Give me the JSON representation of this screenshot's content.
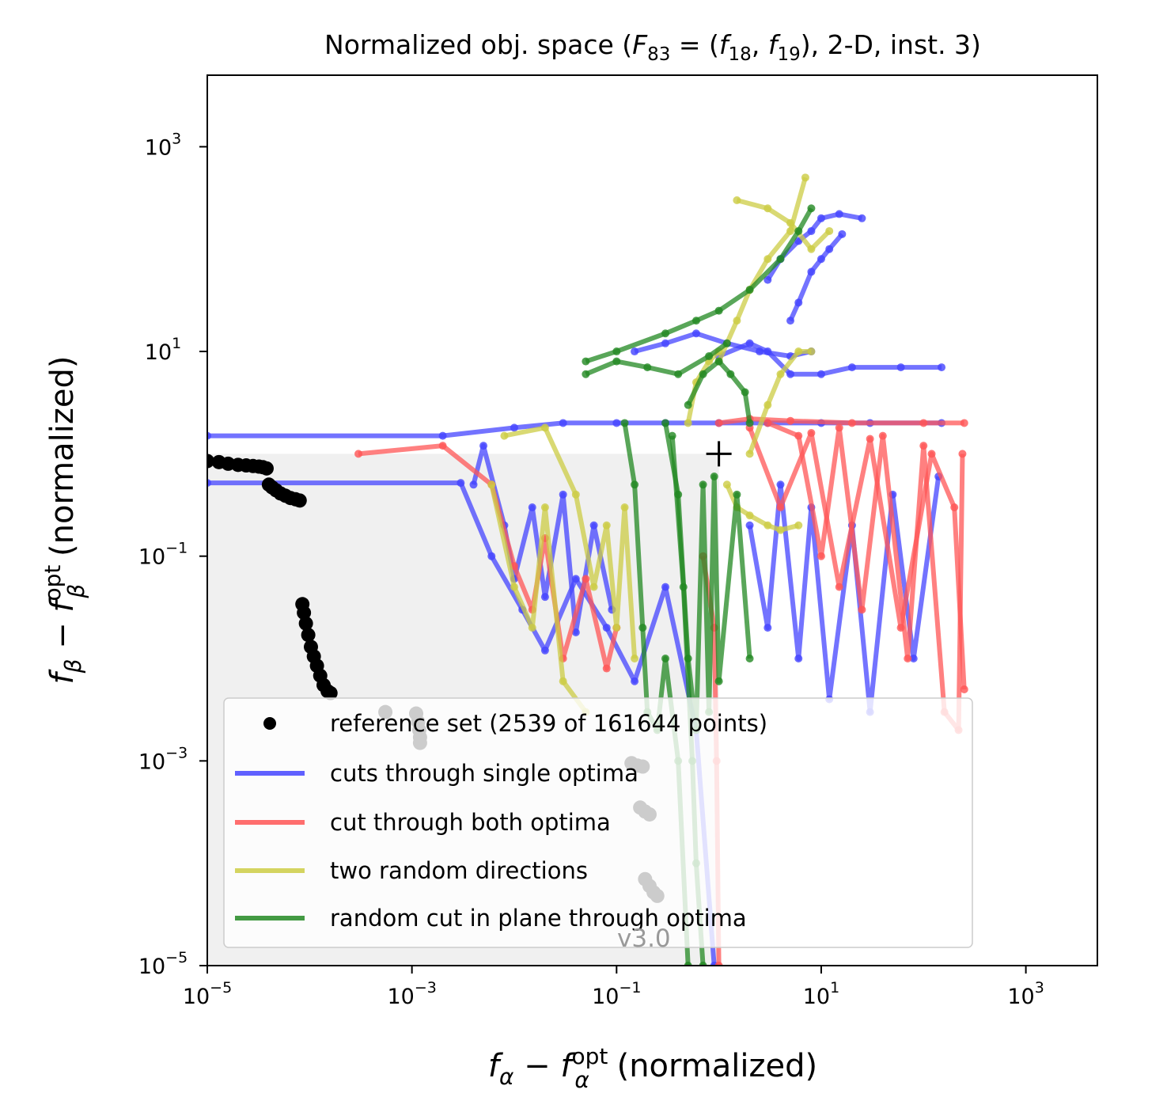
{
  "chart_data": {
    "type": "line",
    "title_parts": {
      "prefix": "Normalized obj. space (",
      "f_main": "F",
      "f_main_sub": "83",
      "eq": " = (",
      "f1": "f",
      "f1_sub": "18",
      "comma": ", ",
      "f2": "f",
      "f2_sub": "19",
      "suffix": "), 2-D, inst. 3)"
    },
    "xlabel_parts": {
      "f": "f",
      "sub": "α",
      "minus": " − ",
      "f2": "f",
      "sup": "opt",
      "sub2": "α",
      "rest": " (normalized)"
    },
    "ylabel_parts": {
      "f": "f",
      "sub": "β",
      "minus": " − ",
      "f2": "f",
      "sup": "opt",
      "sub2": "β",
      "rest": " (normalized)"
    },
    "xscale": "log",
    "yscale": "log",
    "xlim": [
      1e-05,
      5000
    ],
    "ylim": [
      1e-05,
      5000
    ],
    "x_ticks": [
      {
        "value": 1e-05,
        "base": "10",
        "exp": "−5"
      },
      {
        "value": 0.001,
        "base": "10",
        "exp": "−3"
      },
      {
        "value": 0.1,
        "base": "10",
        "exp": "−1"
      },
      {
        "value": 10,
        "base": "10",
        "exp": "1"
      },
      {
        "value": 1000,
        "base": "10",
        "exp": "3"
      }
    ],
    "y_ticks": [
      {
        "value": 1e-05,
        "base": "10",
        "exp": "−5"
      },
      {
        "value": 0.001,
        "base": "10",
        "exp": "−3"
      },
      {
        "value": 0.1,
        "base": "10",
        "exp": "−1"
      },
      {
        "value": 10,
        "base": "10",
        "exp": "1"
      },
      {
        "value": 1000,
        "base": "10",
        "exp": "3"
      }
    ],
    "grid": false,
    "legend_position": "lower-center",
    "watermark": "v3.0",
    "reference_point": [
      1,
      1
    ],
    "dominated_region": {
      "x": [
        1e-05,
        1
      ],
      "y": [
        1e-05,
        1
      ],
      "color": "#f0f0f0"
    },
    "series": [
      {
        "name": "reference set (2539 of 161644 points)",
        "kind": "points",
        "color": "#000000",
        "points": [
          [
            1e-05,
            0.85
          ],
          [
            1.3e-05,
            0.83
          ],
          [
            1.6e-05,
            0.8
          ],
          [
            2e-05,
            0.78
          ],
          [
            2.4e-05,
            0.77
          ],
          [
            2.8e-05,
            0.76
          ],
          [
            3.2e-05,
            0.75
          ],
          [
            3.5e-05,
            0.74
          ],
          [
            3.8e-05,
            0.72
          ],
          [
            4e-05,
            0.5
          ],
          [
            4.3e-05,
            0.47
          ],
          [
            4.7e-05,
            0.44
          ],
          [
            5.2e-05,
            0.41
          ],
          [
            5.8e-05,
            0.39
          ],
          [
            6.5e-05,
            0.37
          ],
          [
            7.3e-05,
            0.36
          ],
          [
            8e-05,
            0.35
          ],
          [
            8.5e-05,
            0.034
          ],
          [
            8.8e-05,
            0.028
          ],
          [
            9.2e-05,
            0.022
          ],
          [
            9.7e-05,
            0.017
          ],
          [
            0.000103,
            0.013
          ],
          [
            0.00011,
            0.0105
          ],
          [
            0.000118,
            0.0085
          ],
          [
            0.000127,
            0.0068
          ],
          [
            0.000137,
            0.0055
          ],
          [
            0.00015,
            0.0048
          ],
          [
            0.00016,
            0.0046
          ],
          [
            0.00055,
            0.003
          ],
          [
            0.0011,
            0.0029
          ],
          [
            0.00115,
            0.0024
          ],
          [
            0.00118,
            0.002
          ],
          [
            0.0012,
            0.0017
          ],
          [
            0.0012,
            0.0015
          ],
          [
            0.14,
            0.00095
          ],
          [
            0.16,
            0.0009
          ],
          [
            0.18,
            0.00088
          ],
          [
            0.17,
            0.00035
          ],
          [
            0.19,
            0.00032
          ],
          [
            0.21,
            0.0003
          ],
          [
            0.19,
            7e-05
          ],
          [
            0.21,
            6e-05
          ],
          [
            0.23,
            5.2e-05
          ],
          [
            0.25,
            4.8e-05
          ]
        ]
      },
      {
        "name": "cuts through single optima",
        "kind": "lines",
        "color": "#4444ff",
        "paths": [
          [
            [
              1e-05,
              1.5
            ],
            [
              0.002,
              1.5
            ],
            [
              0.01,
              1.8
            ],
            [
              0.03,
              2.0
            ],
            [
              0.1,
              2.0
            ],
            [
              0.3,
              2.0
            ],
            [
              1,
              2.0
            ],
            [
              3,
              2.0
            ],
            [
              10,
              2.0
            ],
            [
              30,
              2.0
            ],
            [
              150,
              2.0
            ]
          ],
          [
            [
              1e-05,
              0.52
            ],
            [
              0.003,
              0.52
            ],
            [
              0.006,
              0.1
            ],
            [
              0.012,
              0.03
            ],
            [
              0.02,
              0.012
            ],
            [
              0.04,
              0.06
            ],
            [
              0.08,
              0.02
            ],
            [
              0.15,
              0.006
            ],
            [
              0.3,
              0.05
            ],
            [
              0.6,
              0.002
            ],
            [
              0.9,
              1e-05
            ]
          ],
          [
            [
              0.004,
              0.5
            ],
            [
              0.005,
              1.2
            ],
            [
              0.008,
              0.2
            ],
            [
              0.01,
              0.06
            ],
            [
              0.015,
              0.3
            ],
            [
              0.02,
              0.04
            ],
            [
              0.03,
              0.4
            ],
            [
              0.04,
              0.018
            ],
            [
              0.06,
              0.2
            ],
            [
              0.09,
              0.03
            ]
          ],
          [
            [
              2,
              0.2
            ],
            [
              3,
              0.02
            ],
            [
              4,
              0.5
            ],
            [
              6,
              0.01
            ],
            [
              8,
              0.3
            ],
            [
              12,
              0.004
            ],
            [
              20,
              0.2
            ],
            [
              30,
              0.003
            ],
            [
              50,
              0.4
            ],
            [
              80,
              0.01
            ],
            [
              140,
              0.6
            ]
          ],
          [
            [
              1,
              9
            ],
            [
              2,
              12
            ],
            [
              3,
              10
            ],
            [
              5,
              6
            ],
            [
              10,
              6
            ],
            [
              20,
              7
            ],
            [
              60,
              7
            ],
            [
              150,
              7
            ]
          ],
          [
            [
              3,
              50
            ],
            [
              4,
              80
            ],
            [
              6,
              120
            ],
            [
              8,
              150
            ],
            [
              10,
              200
            ],
            [
              15,
              220
            ],
            [
              25,
              200
            ]
          ],
          [
            [
              5,
              20
            ],
            [
              6,
              30
            ],
            [
              8,
              60
            ],
            [
              10,
              80
            ],
            [
              12,
              100
            ],
            [
              16,
              140
            ]
          ],
          [
            [
              0.15,
              10
            ],
            [
              0.3,
              12
            ],
            [
              0.6,
              15
            ],
            [
              1.2,
              12
            ],
            [
              2.5,
              10
            ],
            [
              5,
              9
            ],
            [
              8,
              10
            ]
          ]
        ]
      },
      {
        "name": "cut through both optima",
        "kind": "lines",
        "color": "#ff5555",
        "paths": [
          [
            [
              0.0003,
              1.0
            ],
            [
              0.002,
              1.2
            ],
            [
              0.006,
              0.5
            ],
            [
              0.01,
              0.08
            ],
            [
              0.015,
              0.03
            ],
            [
              0.02,
              0.15
            ],
            [
              0.03,
              0.01
            ],
            [
              0.05,
              0.06
            ],
            [
              0.08,
              0.008
            ],
            [
              0.1,
              0.02
            ]
          ],
          [
            [
              3,
              2
            ],
            [
              6,
              1.5
            ],
            [
              10,
              0.1
            ],
            [
              15,
              1.8
            ],
            [
              25,
              0.03
            ],
            [
              40,
              1.5
            ],
            [
              70,
              0.01
            ],
            [
              100,
              1.2
            ],
            [
              160,
              0.003
            ],
            [
              220,
              0.002
            ],
            [
              240,
              1.0
            ]
          ],
          [
            [
              2,
              1.8
            ],
            [
              4,
              0.3
            ],
            [
              8,
              1.6
            ],
            [
              15,
              0.05
            ],
            [
              30,
              1.4
            ],
            [
              60,
              0.02
            ],
            [
              120,
              1.0
            ],
            [
              200,
              0.3
            ],
            [
              250,
              0.005
            ]
          ],
          [
            [
              1,
              2
            ],
            [
              2,
              2.2
            ],
            [
              5,
              2.1
            ],
            [
              20,
              2.0
            ],
            [
              100,
              2.0
            ],
            [
              250,
              2.0
            ]
          ],
          [
            [
              0.7,
              0.1
            ],
            [
              0.9,
              0.02
            ],
            [
              0.95,
              0.001
            ],
            [
              1,
              1e-05
            ]
          ]
        ]
      },
      {
        "name": "two random directions",
        "kind": "lines",
        "color": "#cccc44",
        "paths": [
          [
            [
              0.008,
              1.5
            ],
            [
              0.02,
              1.8
            ],
            [
              0.04,
              0.4
            ],
            [
              0.06,
              0.05
            ],
            [
              0.08,
              0.2
            ],
            [
              0.1,
              0.02
            ],
            [
              0.12,
              0.3
            ],
            [
              0.15,
              0.01
            ]
          ],
          [
            [
              0.006,
              0.5
            ],
            [
              0.01,
              0.05
            ],
            [
              0.015,
              0.02
            ],
            [
              0.02,
              0.3
            ],
            [
              0.03,
              0.006
            ],
            [
              0.05,
              0.003
            ]
          ],
          [
            [
              1.2,
              0.5
            ],
            [
              1.5,
              0.3
            ],
            [
              2,
              0.25
            ],
            [
              3,
              0.2
            ],
            [
              4,
              0.18
            ],
            [
              6,
              0.2
            ]
          ],
          [
            [
              2,
              1
            ],
            [
              3,
              3
            ],
            [
              4,
              6
            ],
            [
              6,
              10
            ],
            [
              8,
              10
            ]
          ],
          [
            [
              1,
              8
            ],
            [
              1.5,
              20
            ],
            [
              2,
              40
            ],
            [
              3,
              80
            ],
            [
              5,
              150
            ],
            [
              7,
              500
            ]
          ],
          [
            [
              1.5,
              300
            ],
            [
              3,
              250
            ],
            [
              5,
              180
            ],
            [
              8,
              100
            ],
            [
              12,
              150
            ]
          ],
          [
            [
              0.5,
              2
            ],
            [
              0.6,
              5
            ],
            [
              0.8,
              8
            ],
            [
              1,
              10
            ]
          ]
        ]
      },
      {
        "name": "random cut in plane through optima",
        "kind": "lines",
        "color": "#228822",
        "paths": [
          [
            [
              0.05,
              8
            ],
            [
              0.1,
              10
            ],
            [
              0.3,
              15
            ],
            [
              0.6,
              20
            ],
            [
              1,
              25
            ],
            [
              2,
              40
            ],
            [
              4,
              80
            ],
            [
              6,
              150
            ],
            [
              8,
              250
            ]
          ],
          [
            [
              0.05,
              6
            ],
            [
              0.1,
              8
            ],
            [
              0.2,
              7
            ],
            [
              0.4,
              6
            ],
            [
              0.8,
              9
            ],
            [
              1.2,
              12
            ]
          ],
          [
            [
              0.12,
              2
            ],
            [
              0.15,
              0.5
            ],
            [
              0.18,
              0.02
            ],
            [
              0.2,
              0.003
            ],
            [
              0.25,
              0.002
            ],
            [
              0.3,
              0.01
            ],
            [
              0.4,
              0.001
            ],
            [
              0.5,
              1e-05
            ]
          ],
          [
            [
              0.3,
              2
            ],
            [
              0.4,
              0.4
            ],
            [
              0.5,
              0.01
            ],
            [
              0.6,
              0.002
            ],
            [
              0.7,
              0.5
            ],
            [
              0.8,
              0.003
            ],
            [
              0.9,
              0.6
            ],
            [
              1,
              0.006
            ],
            [
              1.5,
              0.4
            ],
            [
              2,
              0.01
            ]
          ],
          [
            [
              0.35,
              1.5
            ],
            [
              0.45,
              0.05
            ],
            [
              0.55,
              0.001
            ],
            [
              0.6,
              0.0001
            ],
            [
              0.7,
              1e-05
            ]
          ],
          [
            [
              0.5,
              3
            ],
            [
              0.7,
              6
            ],
            [
              1,
              8
            ],
            [
              1.3,
              6
            ],
            [
              1.8,
              4
            ],
            [
              2,
              2
            ]
          ]
        ]
      }
    ]
  }
}
